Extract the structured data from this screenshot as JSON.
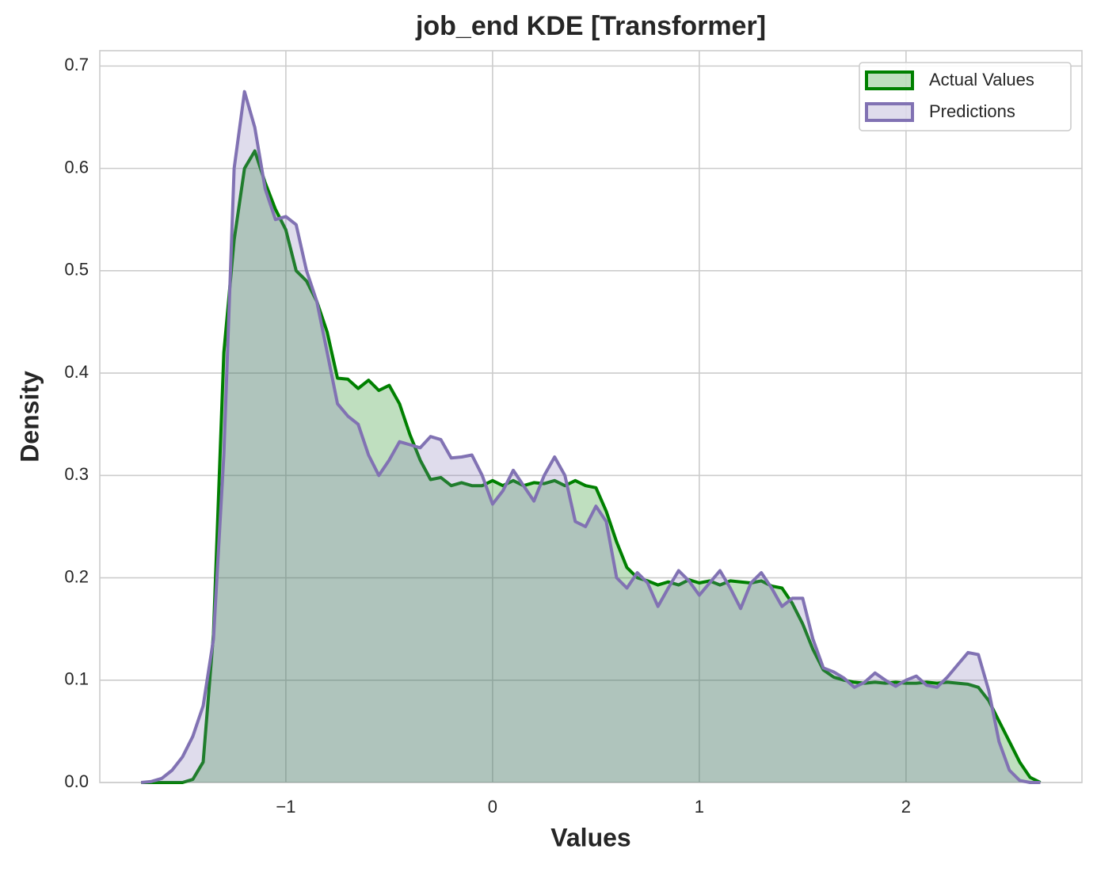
{
  "chart_data": {
    "type": "kde",
    "title": "job_end KDE [Transformer]",
    "xlabel": "Values",
    "ylabel": "Density",
    "x": [
      -1.7,
      -1.65,
      -1.6,
      -1.55,
      -1.5,
      -1.45,
      -1.4,
      -1.35,
      -1.3,
      -1.25,
      -1.2,
      -1.15,
      -1.1,
      -1.05,
      -1.0,
      -0.95,
      -0.9,
      -0.85,
      -0.8,
      -0.75,
      -0.7,
      -0.65,
      -0.6,
      -0.55,
      -0.5,
      -0.45,
      -0.4,
      -0.35,
      -0.3,
      -0.25,
      -0.2,
      -0.15,
      -0.1,
      -0.05,
      0,
      0.05,
      0.1,
      0.15,
      0.2,
      0.25,
      0.3,
      0.35,
      0.4,
      0.45,
      0.5,
      0.55,
      0.6,
      0.65,
      0.7,
      0.75,
      0.8,
      0.85,
      0.9,
      0.95,
      1.0,
      1.05,
      1.1,
      1.15,
      1.2,
      1.25,
      1.3,
      1.35,
      1.4,
      1.45,
      1.5,
      1.55,
      1.6,
      1.65,
      1.7,
      1.75,
      1.8,
      1.85,
      1.9,
      1.95,
      2.0,
      2.05,
      2.1,
      2.15,
      2.2,
      2.25,
      2.3,
      2.35,
      2.4,
      2.45,
      2.5,
      2.55,
      2.6,
      2.65
    ],
    "series": [
      {
        "name": "Actual Values",
        "color": "#008000",
        "values": [
          0,
          0,
          0,
          0,
          0,
          0.003,
          0.02,
          0.145,
          0.42,
          0.53,
          0.6,
          0.617,
          0.586,
          0.56,
          0.54,
          0.5,
          0.49,
          0.47,
          0.44,
          0.395,
          0.394,
          0.385,
          0.393,
          0.383,
          0.388,
          0.37,
          0.34,
          0.315,
          0.296,
          0.298,
          0.29,
          0.293,
          0.29,
          0.29,
          0.295,
          0.29,
          0.295,
          0.29,
          0.293,
          0.292,
          0.295,
          0.29,
          0.295,
          0.29,
          0.288,
          0.265,
          0.235,
          0.21,
          0.2,
          0.197,
          0.193,
          0.196,
          0.193,
          0.198,
          0.195,
          0.197,
          0.193,
          0.197,
          0.196,
          0.195,
          0.197,
          0.192,
          0.19,
          0.175,
          0.155,
          0.13,
          0.11,
          0.103,
          0.1,
          0.098,
          0.097,
          0.098,
          0.097,
          0.098,
          0.097,
          0.097,
          0.098,
          0.097,
          0.098,
          0.097,
          0.096,
          0.093,
          0.08,
          0.06,
          0.04,
          0.02,
          0.005,
          0
        ]
      },
      {
        "name": "Predictions",
        "color": "#8172b3",
        "values": [
          0,
          0.001,
          0.004,
          0.012,
          0.025,
          0.045,
          0.075,
          0.14,
          0.32,
          0.6,
          0.675,
          0.64,
          0.58,
          0.55,
          0.553,
          0.545,
          0.5,
          0.47,
          0.42,
          0.37,
          0.358,
          0.35,
          0.32,
          0.3,
          0.315,
          0.333,
          0.33,
          0.327,
          0.338,
          0.335,
          0.317,
          0.318,
          0.32,
          0.3,
          0.272,
          0.285,
          0.305,
          0.29,
          0.275,
          0.3,
          0.318,
          0.3,
          0.255,
          0.25,
          0.27,
          0.255,
          0.2,
          0.19,
          0.205,
          0.195,
          0.172,
          0.19,
          0.207,
          0.197,
          0.183,
          0.195,
          0.207,
          0.19,
          0.17,
          0.195,
          0.205,
          0.19,
          0.172,
          0.18,
          0.18,
          0.14,
          0.112,
          0.108,
          0.102,
          0.093,
          0.098,
          0.107,
          0.1,
          0.094,
          0.1,
          0.104,
          0.095,
          0.093,
          0.103,
          0.115,
          0.127,
          0.125,
          0.09,
          0.04,
          0.012,
          0.002,
          0,
          0
        ]
      }
    ],
    "xlim": [
      -1.9,
      2.851
    ],
    "ylim": [
      0,
      0.715
    ],
    "xticks": [
      {
        "value": -1,
        "label": "−1"
      },
      0,
      1,
      2
    ],
    "yticks": [
      {
        "value": 0,
        "label": "0.0"
      },
      0.1,
      0.2,
      0.3,
      0.4,
      0.5,
      0.6,
      0.7
    ],
    "grid": true,
    "legend": "upper right"
  }
}
